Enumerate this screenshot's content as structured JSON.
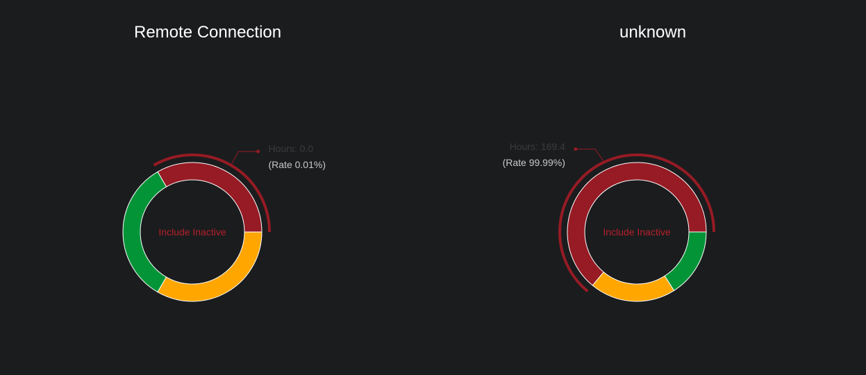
{
  "colors": {
    "background": "#1b1c1e",
    "red": "#961b24",
    "green": "#039438",
    "orange": "#ffa600",
    "hover_ring": "#961b24",
    "center_text": "#b5202b",
    "hours_text": "#3a3b3d",
    "rate_text": "#c9c9c9"
  },
  "chart_data": [
    {
      "type": "pie",
      "donut": true,
      "title": "Remote Connection",
      "center_label": "Include Inactive",
      "slices": [
        {
          "color": "red",
          "fraction": 0.3333
        },
        {
          "color": "green",
          "fraction": 0.3333
        },
        {
          "color": "orange",
          "fraction": 0.3333
        }
      ],
      "highlighted_slice": 0,
      "tooltip": {
        "hours": "Hours: 0.0",
        "rate": "(Rate 0.01%)",
        "side": "right"
      }
    },
    {
      "type": "pie",
      "donut": true,
      "title": "unknown",
      "center_label": "Include Inactive",
      "slices": [
        {
          "color": "red",
          "fraction": 0.64
        },
        {
          "color": "orange",
          "fraction": 0.2
        },
        {
          "color": "green",
          "fraction": 0.16
        }
      ],
      "highlighted_slice": 0,
      "tooltip": {
        "hours": "Hours: 169.4",
        "rate": "(Rate 99.99%)",
        "side": "left"
      }
    }
  ]
}
